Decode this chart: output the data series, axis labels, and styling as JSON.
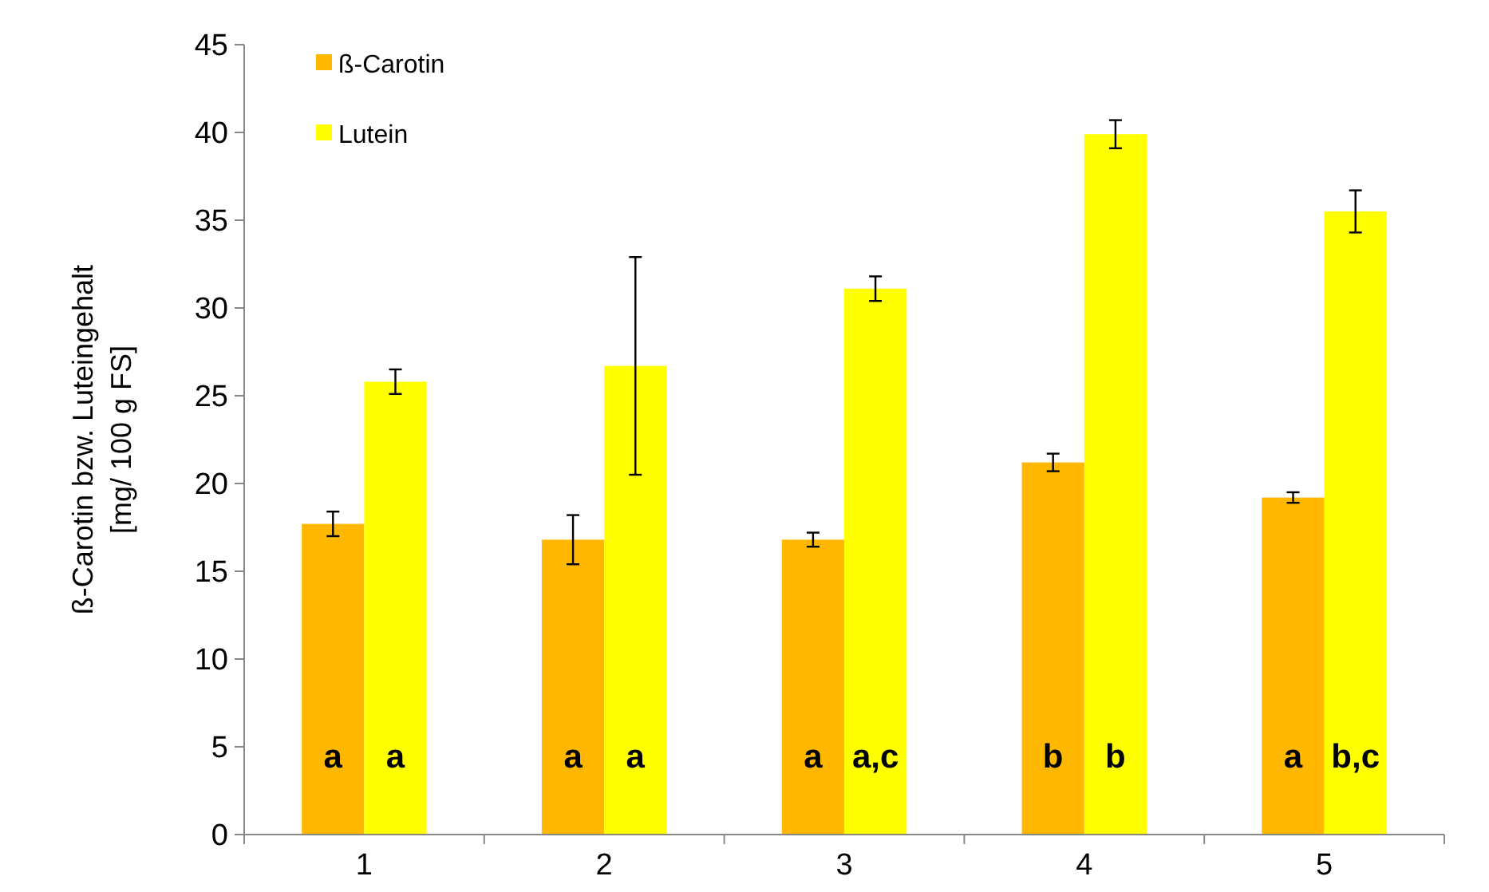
{
  "chart_data": {
    "type": "bar",
    "ylabel": "ß-Carotin bzw. Luteingehalt\n[mg/ 100 g FS]",
    "categories": [
      "1",
      "2",
      "3",
      "4",
      "5"
    ],
    "series": [
      {
        "name": "ß-Carotin",
        "color": "#ffb700",
        "values": [
          17.7,
          16.8,
          16.8,
          21.2,
          19.2
        ],
        "errors": [
          0.7,
          1.4,
          0.4,
          0.5,
          0.3
        ],
        "value_labels": [
          "a",
          "a",
          "a",
          "b",
          "a"
        ]
      },
      {
        "name": "Lutein",
        "color": "#ffff00",
        "values": [
          25.8,
          26.7,
          31.1,
          39.9,
          35.5
        ],
        "errors": [
          0.7,
          6.2,
          0.7,
          0.8,
          1.2
        ],
        "value_labels": [
          "a",
          "a",
          "a,c",
          "b",
          "b,c"
        ]
      }
    ],
    "ylim": [
      0,
      45
    ],
    "yticks": [
      0,
      5,
      10,
      15,
      20,
      25,
      30,
      35,
      40,
      45
    ],
    "grid": false,
    "legend": "top left"
  }
}
